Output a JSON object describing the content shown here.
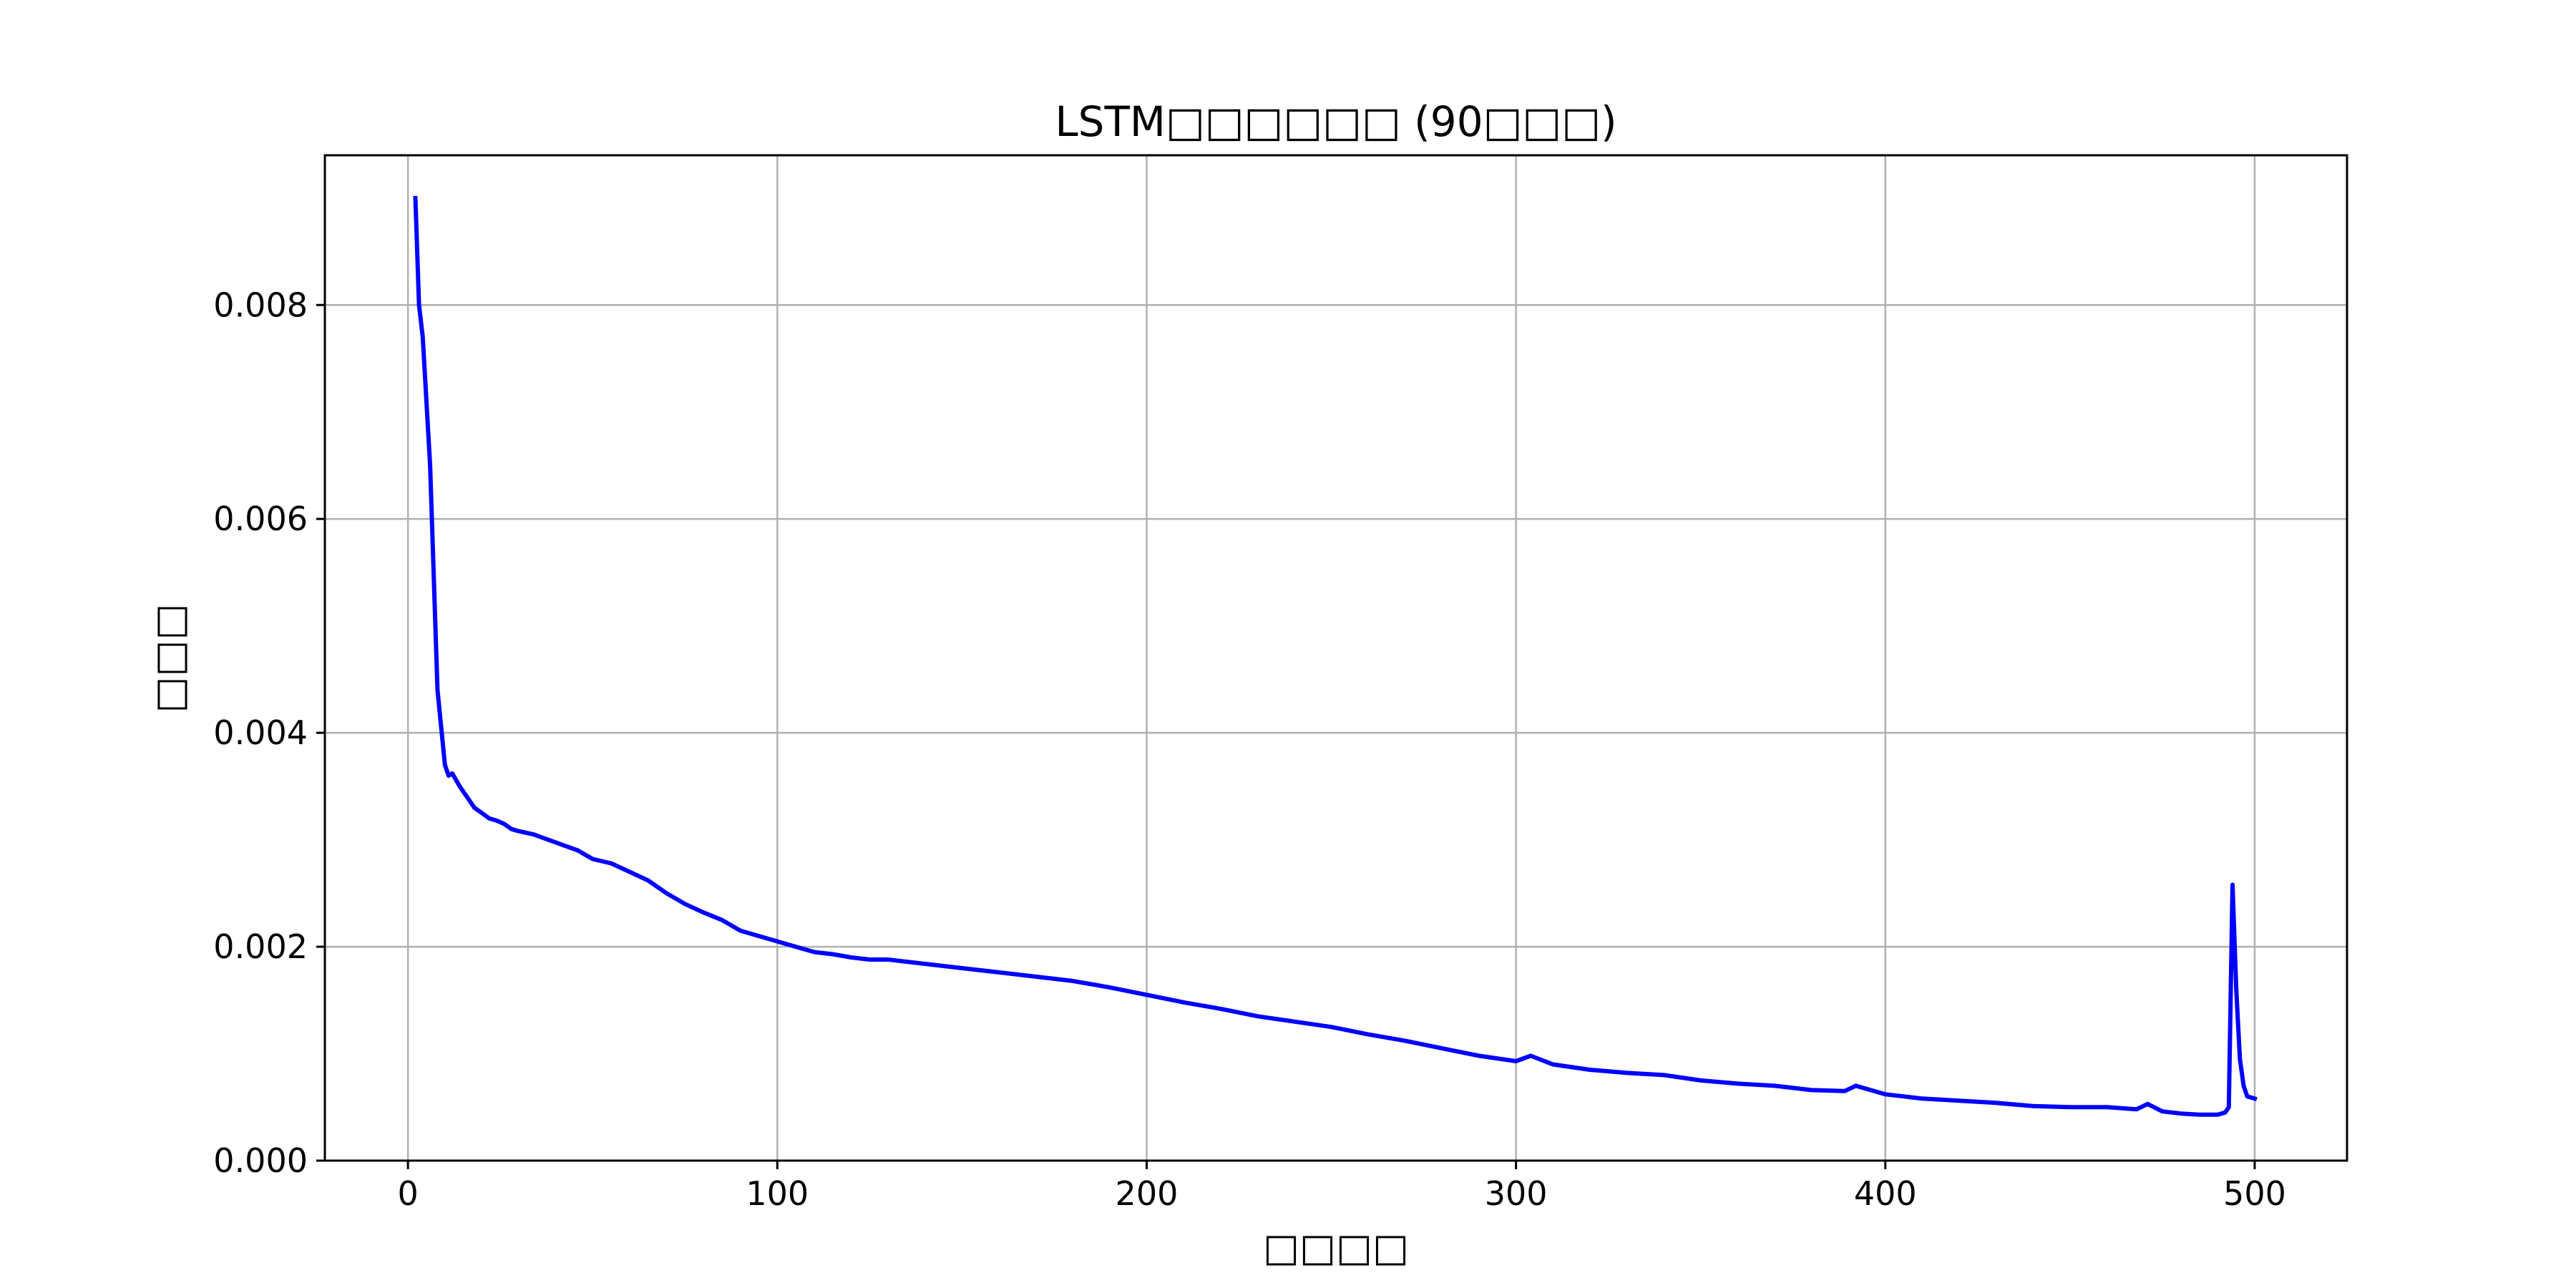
{
  "chart_data": {
    "type": "line",
    "title": "LSTM□□□□□□ (90□□□)",
    "xlabel": "□□□□",
    "ylabel": "□□□",
    "xlim": [
      -22.5,
      525
    ],
    "ylim": [
      0,
      0.0094
    ],
    "grid": true,
    "x_ticks": [
      0,
      100,
      200,
      300,
      400,
      500
    ],
    "x_tick_labels": [
      "0",
      "100",
      "200",
      "300",
      "400",
      "500"
    ],
    "y_ticks": [
      0.0,
      0.002,
      0.004,
      0.006,
      0.008
    ],
    "y_tick_labels": [
      "0.000",
      "0.002",
      "0.004",
      "0.006",
      "0.008"
    ],
    "series": [
      {
        "color": "#0000ff",
        "x": [
          2,
          3,
          4,
          6,
          8,
          10,
          11,
          12,
          14,
          16,
          18,
          20,
          22,
          24,
          26,
          28,
          30,
          34,
          38,
          42,
          46,
          50,
          55,
          60,
          65,
          70,
          75,
          80,
          85,
          90,
          95,
          100,
          105,
          110,
          115,
          120,
          125,
          130,
          140,
          150,
          160,
          170,
          180,
          190,
          200,
          210,
          220,
          230,
          240,
          250,
          260,
          270,
          280,
          290,
          300,
          304,
          310,
          320,
          330,
          340,
          350,
          360,
          370,
          380,
          389,
          392,
          400,
          410,
          420,
          430,
          440,
          450,
          460,
          468,
          471,
          475,
          480,
          485,
          490,
          492,
          493,
          494,
          495,
          496,
          497,
          498,
          500
        ],
        "y": [
          0.009,
          0.008,
          0.0077,
          0.0065,
          0.0044,
          0.0037,
          0.0036,
          0.00362,
          0.0035,
          0.0034,
          0.0033,
          0.00325,
          0.0032,
          0.00318,
          0.00315,
          0.0031,
          0.00308,
          0.00305,
          0.003,
          0.00295,
          0.0029,
          0.00282,
          0.00278,
          0.0027,
          0.00262,
          0.0025,
          0.0024,
          0.00232,
          0.00225,
          0.00215,
          0.0021,
          0.00205,
          0.002,
          0.00195,
          0.00193,
          0.0019,
          0.00188,
          0.00188,
          0.00184,
          0.0018,
          0.00176,
          0.00172,
          0.00168,
          0.00162,
          0.00155,
          0.00148,
          0.00142,
          0.00135,
          0.0013,
          0.00125,
          0.00118,
          0.00112,
          0.00105,
          0.00098,
          0.00093,
          0.00098,
          0.0009,
          0.00085,
          0.00082,
          0.0008,
          0.00075,
          0.00072,
          0.0007,
          0.00066,
          0.00065,
          0.0007,
          0.00062,
          0.00058,
          0.00056,
          0.00054,
          0.00051,
          0.0005,
          0.0005,
          0.00048,
          0.00053,
          0.00046,
          0.00044,
          0.00043,
          0.00043,
          0.00045,
          0.0005,
          0.00258,
          0.0016,
          0.00095,
          0.0007,
          0.0006,
          0.00058
        ]
      }
    ]
  }
}
